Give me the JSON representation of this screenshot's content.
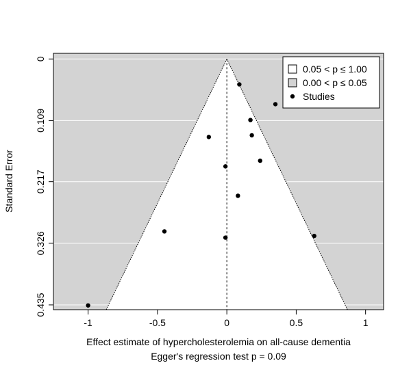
{
  "chart_data": {
    "type": "scatter",
    "title": "",
    "xlabel": "Effect estimate of hypercholesterolemia on all-cause dementia",
    "subtitle": "Egger's regression test p = 0.09",
    "ylabel": "Standard Error",
    "xlim": [
      -1.25,
      1.13
    ],
    "ylim": [
      0.4435,
      -0.0
    ],
    "y_reversed": true,
    "x_ticks": [
      {
        "v": -1,
        "label": "-1"
      },
      {
        "v": -0.5,
        "label": "-0.5"
      },
      {
        "v": 0,
        "label": "0"
      },
      {
        "v": 0.5,
        "label": "0.5"
      },
      {
        "v": 1,
        "label": "1"
      }
    ],
    "y_ticks": [
      {
        "v": 0,
        "label": "0"
      },
      {
        "v": 0.109,
        "label": "0.109"
      },
      {
        "v": 0.217,
        "label": "0.217"
      },
      {
        "v": 0.326,
        "label": "0.326"
      },
      {
        "v": 0.435,
        "label": "0.435"
      }
    ],
    "funnel": {
      "center": 0,
      "z": 1.96
    },
    "legend": {
      "position": "top-right",
      "entries": [
        {
          "label": "0.05 < p ≤ 1.00",
          "swatch": "#ffffff"
        },
        {
          "label": "0.00 < p ≤ 0.05",
          "swatch": "#d3d3d3"
        },
        {
          "label": "Studies",
          "swatch": "point"
        }
      ]
    },
    "grid": true,
    "colors": {
      "region_outside": "#d3d3d3",
      "region_inside": "#ffffff",
      "points": "#000000"
    },
    "points": [
      {
        "x": 0.09,
        "y": 0.045
      },
      {
        "x": 0.35,
        "y": 0.08
      },
      {
        "x": 0.17,
        "y": 0.108
      },
      {
        "x": 0.18,
        "y": 0.135
      },
      {
        "x": -0.13,
        "y": 0.138
      },
      {
        "x": 0.24,
        "y": 0.18
      },
      {
        "x": -0.01,
        "y": 0.19
      },
      {
        "x": 0.08,
        "y": 0.242
      },
      {
        "x": -0.45,
        "y": 0.305
      },
      {
        "x": 0.63,
        "y": 0.313
      },
      {
        "x": -0.01,
        "y": 0.316
      },
      {
        "x": -1.0,
        "y": 0.436
      }
    ]
  }
}
